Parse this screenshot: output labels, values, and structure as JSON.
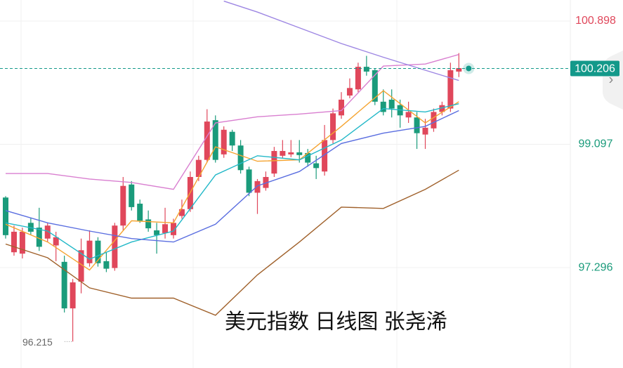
{
  "chart_data": {
    "type": "candlestick",
    "open": [
      98.32,
      97.52,
      97.5,
      97.95,
      97.88,
      97.72,
      97.62,
      97.38,
      96.7,
      97.09,
      97.36,
      97.69,
      97.39,
      97.29,
      97.91,
      98.51,
      98.23,
      98.0,
      97.84,
      97.8,
      97.77,
      98.05,
      98.15,
      98.62,
      98.87,
      99.45,
      98.95,
      99.28,
      99.08,
      98.73,
      98.39,
      98.46,
      98.67,
      98.93,
      98.95,
      98.98,
      98.97,
      98.82,
      98.7,
      99.16,
      99.52,
      99.81,
      99.9,
      100.23,
      100.18,
      99.72,
      99.75,
      99.67,
      99.49,
      99.49,
      99.24,
      99.33,
      99.57,
      99.62,
      100.16
    ],
    "high": [
      98.34,
      97.91,
      97.88,
      98.03,
      98.17,
      97.95,
      97.82,
      97.47,
      97.13,
      97.72,
      97.84,
      97.74,
      97.52,
      97.95,
      98.62,
      98.56,
      98.29,
      98.13,
      97.95,
      98.17,
      98.01,
      98.29,
      98.7,
      98.93,
      99.61,
      99.52,
      99.36,
      99.31,
      99.16,
      98.77,
      98.59,
      98.7,
      99.06,
      99.16,
      99.16,
      99.16,
      99.03,
      98.93,
      99.38,
      99.62,
      99.86,
      100.06,
      100.29,
      100.39,
      100.2,
      99.9,
      99.9,
      99.75,
      99.72,
      99.57,
      99.47,
      99.62,
      99.72,
      100.29,
      100.43
    ],
    "low": [
      97.72,
      97.47,
      97.43,
      97.77,
      97.54,
      97.67,
      97.39,
      96.64,
      96.215,
      96.92,
      97.31,
      97.31,
      97.23,
      97.25,
      97.84,
      98.13,
      97.95,
      97.82,
      97.5,
      97.72,
      97.72,
      98.01,
      98.11,
      98.56,
      98.83,
      98.83,
      98.9,
      99.0,
      98.67,
      98.34,
      98.08,
      98.42,
      98.62,
      98.89,
      98.91,
      98.83,
      98.77,
      98.59,
      98.64,
      99.11,
      99.47,
      99.77,
      99.86,
      100.1,
      99.67,
      99.52,
      99.49,
      99.34,
      99.41,
      99.03,
      99.03,
      99.28,
      99.52,
      99.57,
      100.08
    ],
    "close": [
      97.77,
      97.82,
      97.82,
      97.82,
      97.6,
      97.91,
      97.74,
      96.7,
      97.08,
      97.55,
      97.69,
      97.36,
      97.28,
      97.91,
      98.49,
      98.18,
      97.98,
      97.87,
      97.77,
      97.93,
      97.95,
      98.15,
      98.62,
      98.87,
      99.43,
      98.87,
      99.31,
      99.08,
      98.72,
      98.39,
      98.56,
      98.62,
      99.0,
      99.0,
      98.98,
      98.94,
      98.83,
      98.75,
      99.16,
      99.55,
      99.75,
      99.92,
      100.23,
      100.16,
      99.72,
      99.57,
      99.62,
      99.52,
      99.57,
      99.26,
      99.34,
      99.57,
      99.67,
      100.18,
      100.21
    ],
    "up_color": "#e0475b",
    "down_color": "#1a9b7b",
    "overlays": [
      {
        "color": "#d97fd0",
        "x": [
          0,
          5,
          10,
          15,
          20,
          25,
          30,
          35,
          40,
          45,
          50,
          54
        ],
        "values": [
          98.67,
          98.67,
          98.59,
          98.54,
          98.44,
          99.41,
          99.5,
          99.54,
          99.59,
          100.24,
          100.27,
          100.41
        ]
      },
      {
        "color": "#a0612b",
        "x": [
          0,
          5,
          10,
          15,
          20,
          25,
          30,
          35,
          40,
          45,
          50,
          54
        ],
        "values": [
          97.64,
          97.44,
          97.0,
          96.85,
          96.85,
          96.6,
          97.19,
          97.67,
          98.18,
          98.16,
          98.44,
          98.72
        ]
      },
      {
        "color": "#9d86e3",
        "x": [
          26,
          30,
          35,
          40,
          45,
          50,
          54
        ],
        "values": [
          101.19,
          101.03,
          100.8,
          100.57,
          100.37,
          100.18,
          100.03
        ]
      },
      {
        "color": "#f5a431",
        "x": [
          0,
          5,
          10,
          15,
          20,
          25,
          30,
          35,
          40,
          45,
          50,
          54
        ],
        "values": [
          97.93,
          97.67,
          97.26,
          97.98,
          97.95,
          99.06,
          98.85,
          98.87,
          99.36,
          99.88,
          99.41,
          99.72
        ]
      },
      {
        "color": "#22b8c8",
        "x": [
          0,
          5,
          10,
          15,
          20,
          25,
          30,
          35,
          40,
          45,
          50,
          54
        ],
        "values": [
          97.95,
          97.83,
          97.42,
          97.67,
          97.83,
          98.65,
          98.93,
          98.87,
          99.16,
          99.62,
          99.57,
          99.69
        ]
      },
      {
        "color": "#5a6ee0",
        "x": [
          0,
          5,
          10,
          15,
          20,
          25,
          30,
          35,
          40,
          45,
          50,
          54
        ],
        "values": [
          98.13,
          97.95,
          97.83,
          97.72,
          97.67,
          97.93,
          98.49,
          98.7,
          99.11,
          99.26,
          99.36,
          99.59
        ]
      }
    ],
    "ylim": [
      95.829,
      101.206
    ],
    "yticks": [
      97.296,
      99.097,
      100.898
    ],
    "ytick_colors": [
      "#1a9b7b",
      "#1a9b7b",
      "#e0475b"
    ],
    "last_price": 100.206,
    "last_price_color": "#13998a",
    "low_label": 96.215,
    "watermark": "美元指数 日线图 张尧浠"
  }
}
